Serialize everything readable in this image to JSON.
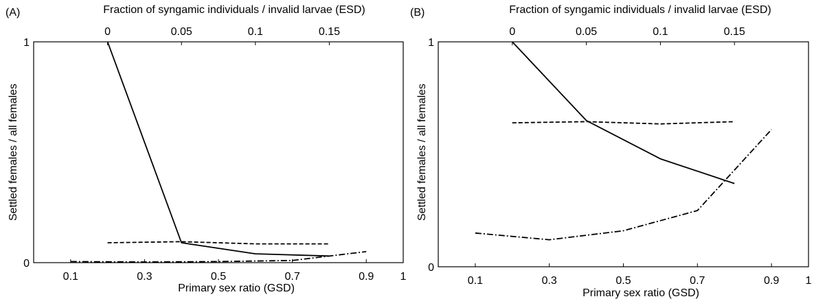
{
  "chart_data": [
    {
      "panel_label": "(A)",
      "type": "line",
      "title": "",
      "xlabel": "Primary sex ratio (GSD)",
      "xlabel_top": "Fraction of syngamic individuals / invalid larvae (ESD)",
      "ylabel": "Settled females / all females",
      "xlim": [
        0,
        1
      ],
      "ylim": [
        0,
        1
      ],
      "x_ticks": [
        "0.1",
        "0.3",
        "0.5",
        "0.7",
        "0.9",
        "1"
      ],
      "x_tick_values": [
        0.1,
        0.3,
        0.5,
        0.7,
        0.9,
        1.0
      ],
      "x_top_ticks": [
        "0",
        "0.05",
        "0.1",
        "0.15"
      ],
      "x_top_tick_values": [
        0.2,
        0.4,
        0.6,
        0.8
      ],
      "y_ticks": [
        "0",
        "1"
      ],
      "y_tick_values": [
        0,
        1
      ],
      "grid": false,
      "series": [
        {
          "style": "solid",
          "x": [
            0.2,
            0.4,
            0.6,
            0.8
          ],
          "y": [
            1.0,
            0.09,
            0.04,
            0.03
          ]
        },
        {
          "style": "dashed",
          "x": [
            0.2,
            0.4,
            0.6,
            0.8
          ],
          "y": [
            0.09,
            0.095,
            0.085,
            0.085
          ]
        },
        {
          "style": "dashdot",
          "x": [
            0.1,
            0.3,
            0.5,
            0.7,
            0.9
          ],
          "y": [
            0.005,
            0.003,
            0.005,
            0.01,
            0.05
          ]
        }
      ]
    },
    {
      "panel_label": "(B)",
      "type": "line",
      "title": "",
      "xlabel": "Primary sex ratio (GSD)",
      "xlabel_top": "Fraction of syngamic individuals / invalid larvae (ESD)",
      "ylabel": "Settled females / all females",
      "xlim": [
        0,
        1
      ],
      "ylim": [
        0,
        1
      ],
      "x_ticks": [
        "0.1",
        "0.3",
        "0.5",
        "0.7",
        "0.9",
        "1"
      ],
      "x_tick_values": [
        0.1,
        0.3,
        0.5,
        0.7,
        0.9,
        1.0
      ],
      "x_top_ticks": [
        "0",
        "0.05",
        "0.1",
        "0.15"
      ],
      "x_top_tick_values": [
        0.2,
        0.4,
        0.6,
        0.8
      ],
      "y_ticks": [
        "0",
        "1"
      ],
      "y_tick_values": [
        0,
        1
      ],
      "grid": false,
      "series": [
        {
          "style": "solid",
          "x": [
            0.2,
            0.4,
            0.6,
            0.8
          ],
          "y": [
            1.0,
            0.65,
            0.48,
            0.37
          ]
        },
        {
          "style": "dashed",
          "x": [
            0.2,
            0.4,
            0.6,
            0.8
          ],
          "y": [
            0.64,
            0.645,
            0.635,
            0.645
          ]
        },
        {
          "style": "dashdot",
          "x": [
            0.1,
            0.3,
            0.5,
            0.7,
            0.9
          ],
          "y": [
            0.15,
            0.12,
            0.16,
            0.25,
            0.61
          ]
        }
      ]
    }
  ]
}
